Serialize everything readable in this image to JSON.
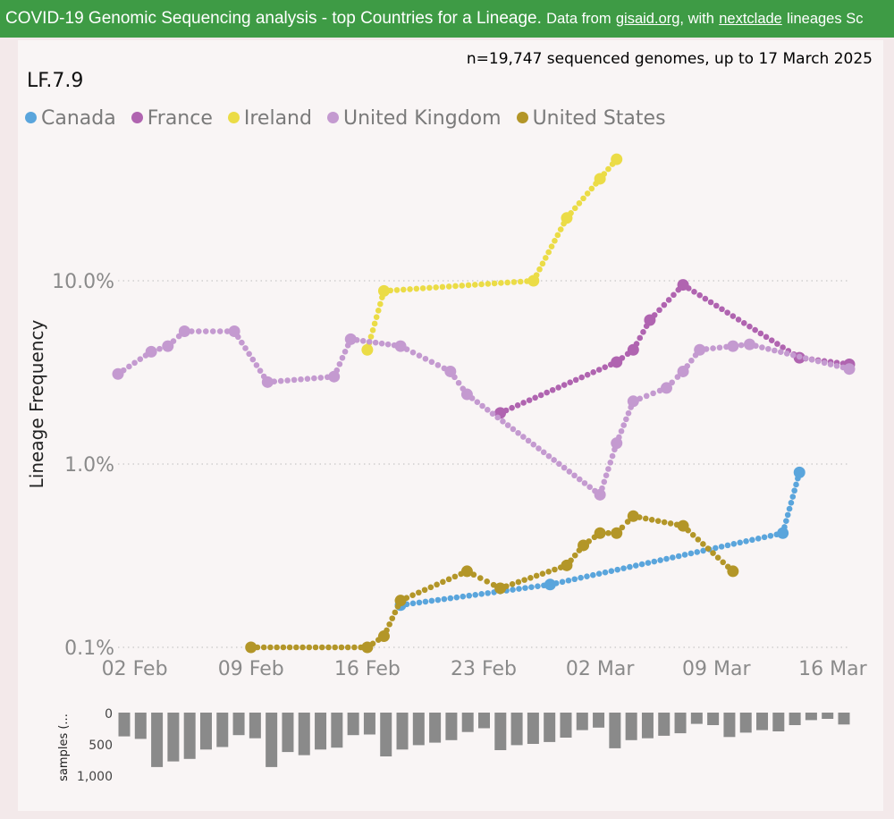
{
  "banner": {
    "title": "COVID-19 Genomic Sequencing analysis - top Countries for a Lineage.",
    "data_from": "Data from",
    "gisaid": "gisaid.org",
    "with": ", with",
    "nextclade": "nextclade",
    "suffix": "lineages Sc"
  },
  "subtitle": "n=19,747 sequenced genomes, up to 17 March 2025",
  "lineage": "LF.7.9",
  "legend": [
    {
      "label": "Canada",
      "color": "#5aa5dc"
    },
    {
      "label": "France",
      "color": "#b064b0"
    },
    {
      "label": "Ireland",
      "color": "#ebdc46"
    },
    {
      "label": "United Kingdom",
      "color": "#c49ad0"
    },
    {
      "label": "United States",
      "color": "#b39628"
    }
  ],
  "chart_data": [
    {
      "type": "line",
      "title": "LF.7.9",
      "ylabel": "Lineage Frequency",
      "y_scale": "log",
      "ylim": [
        0.1,
        40
      ],
      "y_ticks": [
        "0.1%",
        "1.0%",
        "10.0%"
      ],
      "x_ticks": [
        "02 Feb",
        "09 Feb",
        "16 Feb",
        "23 Feb",
        "02 Mar",
        "09 Mar",
        "16 Mar"
      ],
      "xlim": [
        "2025-02-01",
        "2025-03-17"
      ],
      "grid": "horizontal dotted",
      "legend": "top-left",
      "series": [
        {
          "name": "Canada",
          "color": "#5aa5dc",
          "x": [
            "2025-02-18",
            "2025-02-27",
            "2025-03-13",
            "2025-03-14"
          ],
          "y": [
            0.17,
            0.22,
            0.42,
            0.9
          ]
        },
        {
          "name": "France",
          "color": "#b064b0",
          "x": [
            "2025-02-24",
            "2025-03-03",
            "2025-03-04",
            "2025-03-05",
            "2025-03-07",
            "2025-03-14",
            "2025-03-17"
          ],
          "y": [
            1.9,
            3.6,
            4.2,
            6.1,
            9.5,
            3.8,
            3.5
          ]
        },
        {
          "name": "Ireland",
          "color": "#ebdc46",
          "x": [
            "2025-02-16",
            "2025-02-17",
            "2025-02-26",
            "2025-02-28",
            "2025-03-02",
            "2025-03-03"
          ],
          "y": [
            4.2,
            8.8,
            10.0,
            22.0,
            36.0,
            46.0
          ]
        },
        {
          "name": "United Kingdom",
          "color": "#c49ad0",
          "x": [
            "2025-02-01",
            "2025-02-03",
            "2025-02-04",
            "2025-02-05",
            "2025-02-08",
            "2025-02-10",
            "2025-02-14",
            "2025-02-15",
            "2025-02-18",
            "2025-02-21",
            "2025-02-22",
            "2025-03-02",
            "2025-03-03",
            "2025-03-04",
            "2025-03-06",
            "2025-03-07",
            "2025-03-08",
            "2025-03-10",
            "2025-03-11",
            "2025-03-17"
          ],
          "y": [
            3.1,
            4.1,
            4.4,
            5.3,
            5.3,
            2.8,
            3.0,
            4.8,
            4.4,
            3.2,
            2.4,
            0.68,
            1.3,
            2.2,
            2.6,
            3.2,
            4.2,
            4.4,
            4.5,
            3.3
          ]
        },
        {
          "name": "United States",
          "color": "#b39628",
          "x": [
            "2025-02-09",
            "2025-02-16",
            "2025-02-17",
            "2025-02-18",
            "2025-02-22",
            "2025-02-24",
            "2025-02-28",
            "2025-03-01",
            "2025-03-02",
            "2025-03-03",
            "2025-03-04",
            "2025-03-07",
            "2025-03-10"
          ],
          "y": [
            0.1,
            0.1,
            0.115,
            0.18,
            0.26,
            0.21,
            0.28,
            0.36,
            0.42,
            0.42,
            0.52,
            0.46,
            0.26
          ]
        }
      ]
    },
    {
      "type": "bar",
      "ylabel": "samples (...",
      "y_ticks": [
        "0",
        "500",
        "1,000"
      ],
      "ylim": [
        0,
        1000
      ],
      "orientation": "downward",
      "values": [
        380,
        420,
        870,
        780,
        740,
        590,
        550,
        360,
        410,
        870,
        630,
        680,
        590,
        560,
        360,
        350,
        700,
        590,
        520,
        480,
        440,
        310,
        250,
        600,
        520,
        500,
        470,
        400,
        280,
        240,
        570,
        440,
        410,
        370,
        330,
        180,
        200,
        390,
        320,
        280,
        300,
        200,
        120,
        100,
        190
      ]
    }
  ]
}
